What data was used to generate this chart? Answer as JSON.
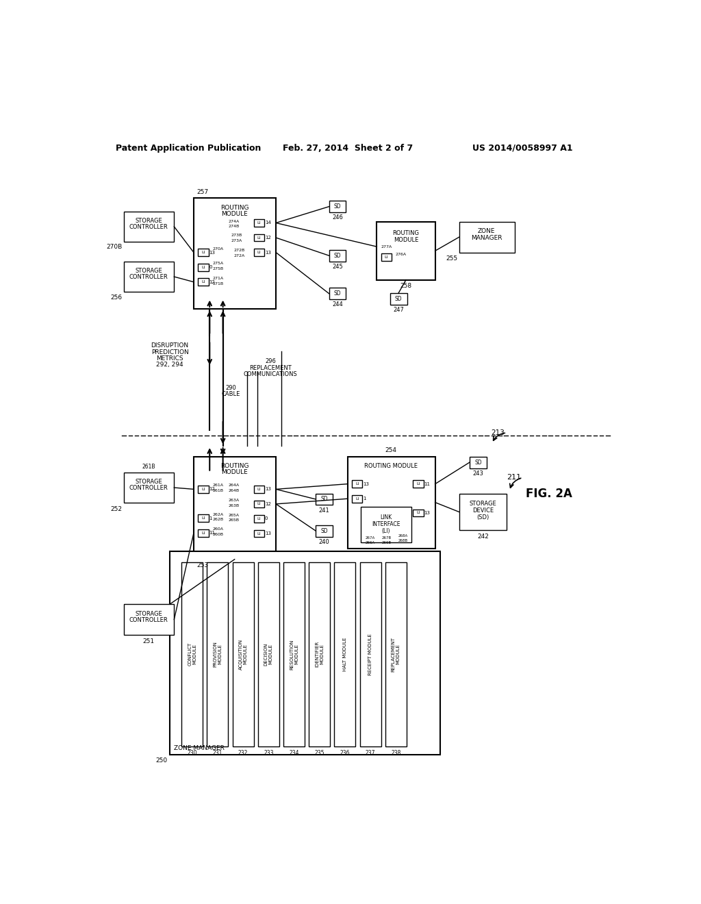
{
  "bg_color": "#ffffff",
  "header_left": "Patent Application Publication",
  "header_mid": "Feb. 27, 2014  Sheet 2 of 7",
  "header_right": "US 2014/0058997 A1"
}
